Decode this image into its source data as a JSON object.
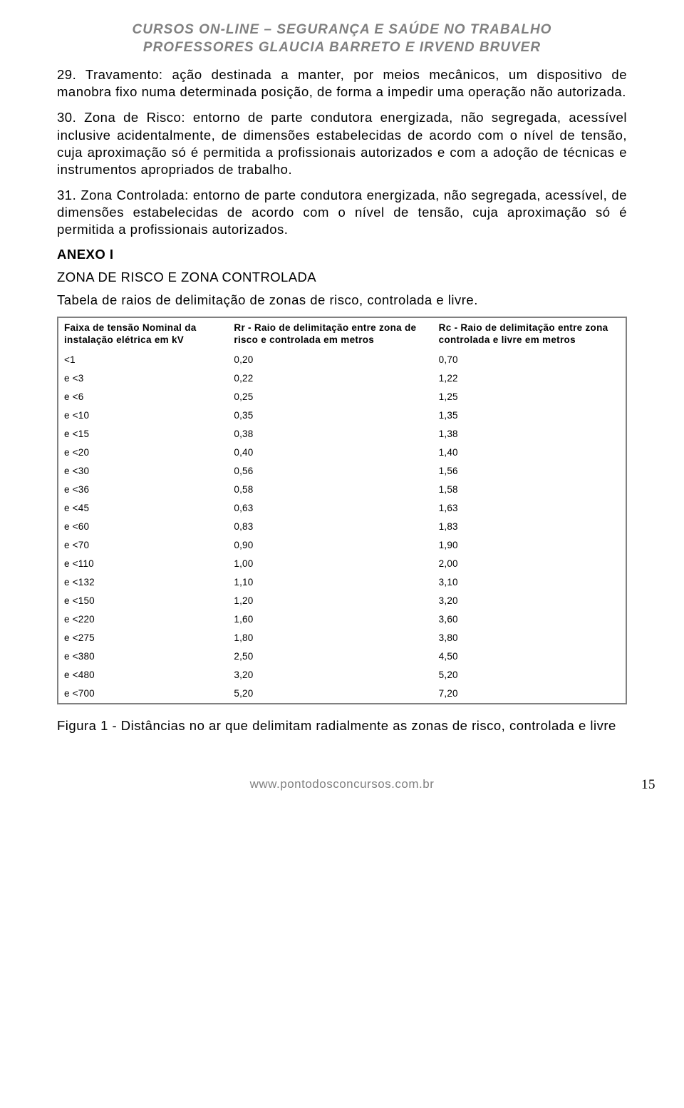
{
  "header": {
    "line1": "CURSOS ON-LINE – SEGURANÇA E SAÚDE NO TRABALHO",
    "line2": "PROFESSORES GLAUCIA BARRETO E IRVEND BRUVER"
  },
  "paragraphs": {
    "p29": "29. Travamento: ação destinada a manter, por meios mecânicos, um dispositivo de manobra fixo numa determinada posição, de forma a impedir uma operação não autorizada.",
    "p30": "30. Zona de Risco: entorno de parte condutora energizada, não segregada, acessível inclusive acidentalmente, de dimensões estabelecidas de acordo com o nível de tensão, cuja aproximação só é permitida a profissionais autorizados e com a adoção de técnicas e instrumentos apropriados de trabalho.",
    "p31": "31. Zona Controlada: entorno de parte condutora energizada, não segregada, acessível, de dimensões estabelecidas de acordo com o nível de tensão, cuja aproximação só é permitida a profissionais autorizados."
  },
  "anexo_label": "ANEXO I",
  "zona_title": "ZONA DE RISCO E ZONA CONTROLADA",
  "tabela_caption": "Tabela de raios de delimitação de zonas de risco, controlada e livre.",
  "table": {
    "columns": [
      "Faixa de tensão Nominal da instalação elétrica em kV",
      "Rr - Raio de delimitação entre zona de risco e controlada em metros",
      "Rc - Raio de delimitação entre zona controlada e livre em metros"
    ],
    "rows": [
      [
        "<1",
        "0,20",
        "0,70"
      ],
      [
        "e <3",
        "0,22",
        "1,22"
      ],
      [
        "e <6",
        "0,25",
        "1,25"
      ],
      [
        "e <10",
        "0,35",
        "1,35"
      ],
      [
        "e <15",
        "0,38",
        "1,38"
      ],
      [
        "e <20",
        "0,40",
        "1,40"
      ],
      [
        "e <30",
        "0,56",
        "1,56"
      ],
      [
        "e <36",
        "0,58",
        "1,58"
      ],
      [
        "e <45",
        "0,63",
        "1,63"
      ],
      [
        "e <60",
        "0,83",
        "1,83"
      ],
      [
        "e <70",
        "0,90",
        "1,90"
      ],
      [
        "e <110",
        "1,00",
        "2,00"
      ],
      [
        "e <132",
        "1,10",
        "3,10"
      ],
      [
        "e <150",
        "1,20",
        "3,20"
      ],
      [
        "e <220",
        "1,60",
        "3,60"
      ],
      [
        "e <275",
        "1,80",
        "3,80"
      ],
      [
        "e <380",
        "2,50",
        "4,50"
      ],
      [
        "e <480",
        "3,20",
        "5,20"
      ],
      [
        "e <700",
        "5,20",
        "7,20"
      ]
    ]
  },
  "figura": "Figura 1 - Distâncias no ar que delimitam radialmente as zonas de risco, controlada e livre",
  "footer": {
    "url": "www.pontodosconcursos.com.br",
    "page": "15"
  }
}
